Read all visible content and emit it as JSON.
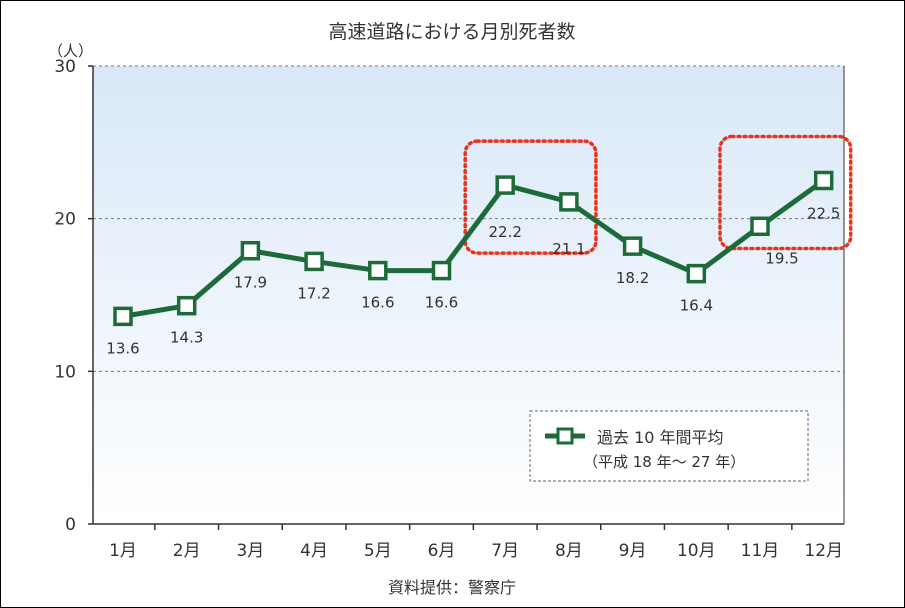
{
  "chart_data": {
    "type": "line",
    "title": "高速道路における月別死者数",
    "ylabel": "（人）",
    "xlabel": "",
    "categories": [
      "1月",
      "2月",
      "3月",
      "4月",
      "5月",
      "6月",
      "7月",
      "8月",
      "9月",
      "10月",
      "11月",
      "12月"
    ],
    "series": [
      {
        "name": "過去 10 年間平均",
        "values": [
          13.6,
          14.3,
          17.9,
          17.2,
          16.6,
          16.6,
          22.2,
          21.1,
          18.2,
          16.4,
          19.5,
          22.5
        ],
        "value_labels": [
          "13.6",
          "14.3",
          "17.9",
          "17.2",
          "16.6",
          "16.6",
          "22.2",
          "21.1",
          "18.2",
          "16.4",
          "19.5",
          "22.5"
        ]
      }
    ],
    "ylim": [
      0,
      30
    ],
    "yticks": [
      0,
      10,
      20,
      30
    ],
    "ytick_labels": [
      "0",
      "10",
      "20",
      "30"
    ],
    "grid": true,
    "legend": {
      "position": "bottom-right",
      "label": "過去 10 年間平均",
      "sublabel": "（平成 18 年〜 27 年）"
    },
    "highlighted_ranges": [
      [
        "7月",
        "8月"
      ],
      [
        "11月",
        "12月"
      ]
    ],
    "source": "資料提供：警察庁",
    "colors": {
      "line": "#1e6b3a",
      "marker_fill": "#ffffff",
      "highlight": "#e8341c",
      "grid": "#7a7a7a",
      "axis": "#333333",
      "plot_gradient_top": "#d9e8f8",
      "plot_gradient_bottom": "#ffffff"
    }
  }
}
